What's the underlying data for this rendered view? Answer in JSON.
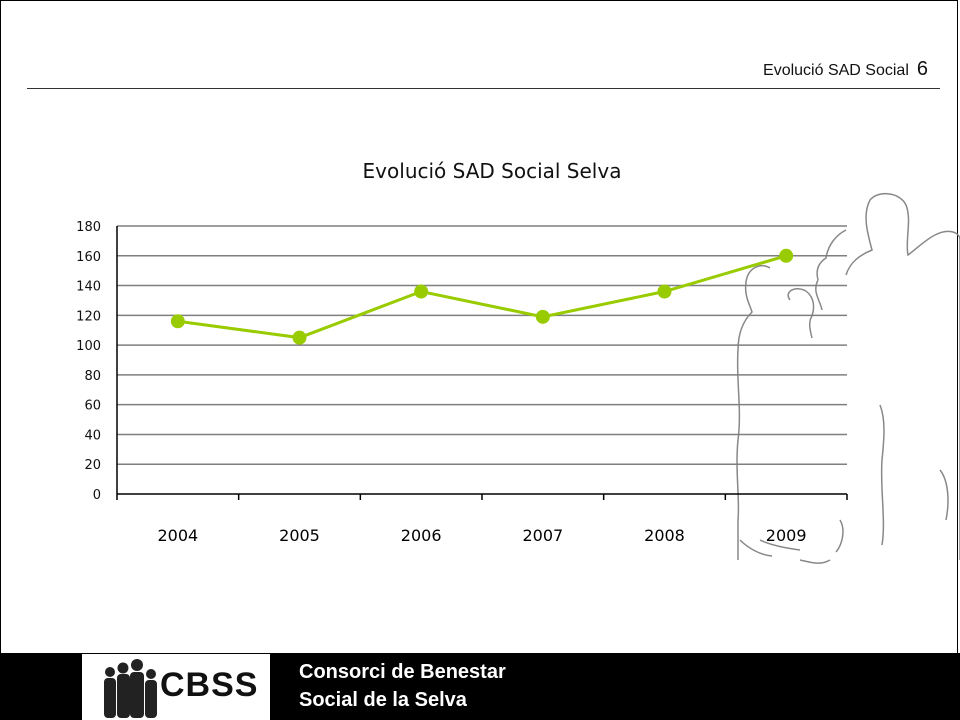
{
  "header": {
    "title": "Evolució SAD Social",
    "page_number": "6"
  },
  "footer": {
    "logo_text": "CBSS",
    "org_line1": "Consorci de Benestar",
    "org_line2": "Social de la Selva"
  },
  "colors": {
    "series": "#99cc00",
    "grid": "#7f7f7f",
    "footer_bg": "#000000"
  },
  "chart_data": {
    "type": "line",
    "title": "Evolució SAD Social Selva",
    "xlabel": "",
    "ylabel": "",
    "categories": [
      "2004",
      "2005",
      "2006",
      "2007",
      "2008",
      "2009"
    ],
    "series": [
      {
        "values": [
          116,
          105,
          136,
          119,
          136,
          160
        ]
      }
    ],
    "ylim": [
      0,
      180
    ],
    "yticks": [
      0,
      20,
      40,
      60,
      80,
      100,
      120,
      140,
      160,
      180
    ],
    "grid": true,
    "legend": "none"
  }
}
